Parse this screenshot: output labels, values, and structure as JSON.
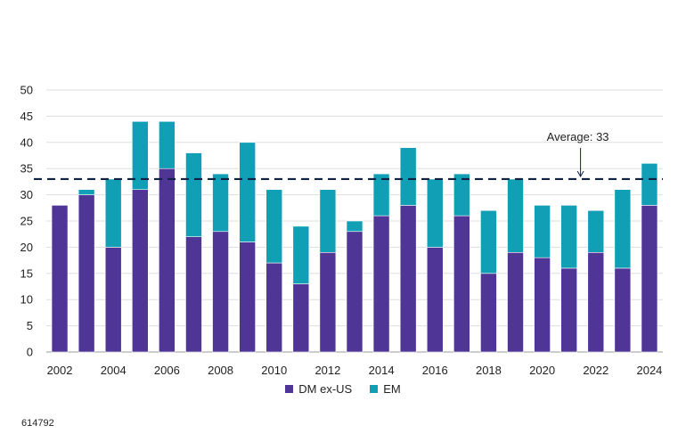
{
  "chart_data": {
    "type": "bar",
    "stacked": true,
    "categories": [
      "2002",
      "2003",
      "2004",
      "2005",
      "2006",
      "2007",
      "2008",
      "2009",
      "2010",
      "2011",
      "2012",
      "2013",
      "2014",
      "2015",
      "2016",
      "2017",
      "2018",
      "2019",
      "2020",
      "2021",
      "2022",
      "2023",
      "2024"
    ],
    "series": [
      {
        "name": "DM ex-US",
        "color": "#4f3596",
        "values": [
          28,
          30,
          20,
          31,
          35,
          22,
          23,
          21,
          17,
          13,
          19,
          23,
          26,
          28,
          20,
          26,
          15,
          19,
          18,
          16,
          19,
          16,
          28
        ]
      },
      {
        "name": "EM",
        "color": "#119fb6",
        "values": [
          0,
          1,
          13,
          13,
          9,
          16,
          11,
          19,
          14,
          11,
          12,
          2,
          8,
          11,
          13,
          8,
          12,
          14,
          10,
          12,
          8,
          15,
          8
        ]
      }
    ],
    "x_tick_labels": [
      "2002",
      "2004",
      "2006",
      "2008",
      "2010",
      "2012",
      "2014",
      "2016",
      "2018",
      "2020",
      "2022",
      "2024"
    ],
    "y_ticks": [
      "0",
      "5",
      "10",
      "15",
      "20",
      "25",
      "30",
      "35",
      "40",
      "45",
      "50"
    ],
    "ylim": [
      0,
      50
    ],
    "grid": true,
    "average": {
      "value": 33,
      "label": "Average: 33",
      "line_style": "dashed",
      "color": "#0f2244"
    },
    "legend_position": "bottom-center"
  },
  "footnote": "614792"
}
